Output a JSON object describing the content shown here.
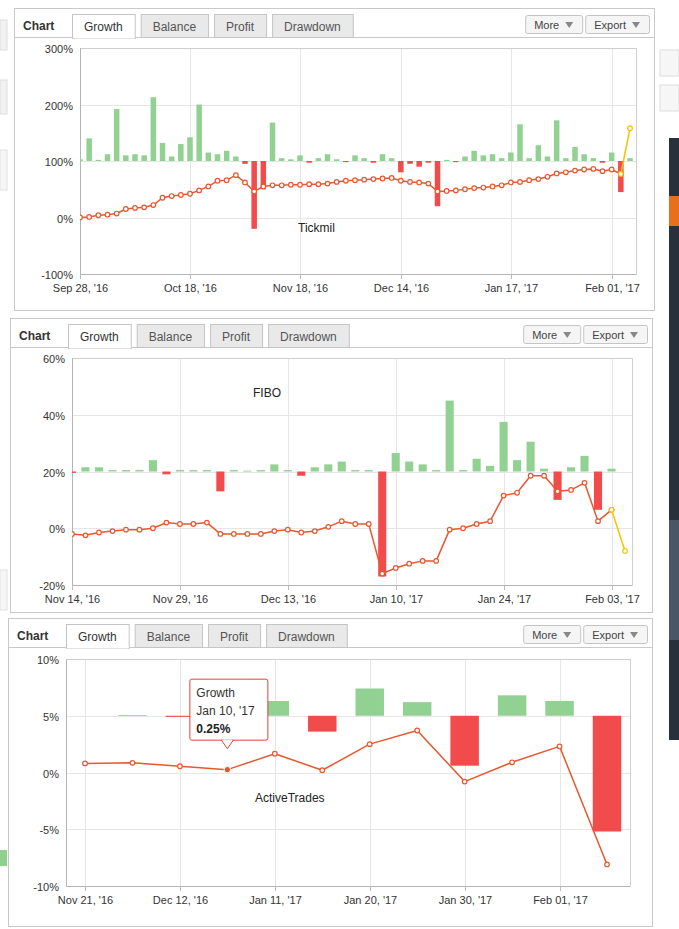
{
  "ui": {
    "header": "Chart",
    "tabs": [
      "Growth",
      "Balance",
      "Profit",
      "Drawdown"
    ],
    "buttons": [
      "More",
      "Export"
    ]
  },
  "chart_data": [
    {
      "type": "bar",
      "annotation": "Tickmil",
      "categories": [
        "Sep 28, '16",
        null,
        null,
        null,
        null,
        null,
        null,
        null,
        null,
        null,
        null,
        null,
        "Oct 18, '16",
        null,
        null,
        null,
        null,
        null,
        null,
        null,
        null,
        null,
        null,
        null,
        "Nov 18, '16",
        null,
        null,
        null,
        null,
        null,
        null,
        null,
        null,
        null,
        null,
        "Dec 14, '16",
        null,
        null,
        null,
        null,
        null,
        null,
        null,
        null,
        null,
        null,
        null,
        "Jan 17, '17",
        null,
        null,
        null,
        null,
        null,
        null,
        null,
        null,
        null,
        null,
        "Feb 01, '17",
        null,
        null
      ],
      "ylim": [
        -100,
        300
      ],
      "yticks": [
        {
          "value": -100,
          "label": "-100%"
        },
        {
          "value": 0,
          "label": "0%"
        },
        {
          "value": 100,
          "label": "100%"
        },
        {
          "value": 200,
          "label": "200%"
        },
        {
          "value": 300,
          "label": "300%"
        }
      ],
      "y2lim": [
        -200,
        200
      ],
      "grid": true,
      "series": [
        {
          "type": "bar",
          "axis": "y2",
          "values": [
            3,
            40,
            2,
            12,
            92,
            10,
            12,
            10,
            113,
            32,
            8,
            30,
            42,
            100,
            15,
            12,
            18,
            8,
            -5,
            -120,
            -50,
            68,
            5,
            3,
            10,
            -3,
            5,
            12,
            3,
            -2,
            10,
            5,
            -3,
            12,
            5,
            -20,
            -5,
            -10,
            -3,
            -80,
            2,
            -2,
            8,
            18,
            10,
            12,
            5,
            15,
            65,
            5,
            28,
            8,
            72,
            5,
            25,
            12,
            5,
            -3,
            15,
            -55,
            5
          ],
          "colors": [
            "#91d191",
            "#91d191",
            "#91d191",
            "#91d191",
            "#91d191",
            "#91d191",
            "#91d191",
            "#91d191",
            "#91d191",
            "#91d191",
            "#91d191",
            "#91d191",
            "#91d191",
            "#91d191",
            "#91d191",
            "#91d191",
            "#91d191",
            "#91d191",
            "#f24b4b",
            "#f24b4b",
            "#f24b4b",
            "#91d191",
            "#91d191",
            "#91d191",
            "#91d191",
            "#f24b4b",
            "#91d191",
            "#91d191",
            "#91d191",
            "#f24b4b",
            "#91d191",
            "#91d191",
            "#f24b4b",
            "#91d191",
            "#91d191",
            "#f24b4b",
            "#f24b4b",
            "#f24b4b",
            "#f24b4b",
            "#f24b4b",
            "#91d191",
            "#f24b4b",
            "#91d191",
            "#91d191",
            "#91d191",
            "#91d191",
            "#91d191",
            "#91d191",
            "#91d191",
            "#91d191",
            "#91d191",
            "#91d191",
            "#91d191",
            "#91d191",
            "#91d191",
            "#91d191",
            "#91d191",
            "#f24b4b",
            "#91d191",
            "#f24b4b",
            "#91d191"
          ]
        },
        {
          "type": "line",
          "color": "#e9572f",
          "marker": "circle",
          "values": [
            0,
            1,
            4,
            5,
            7,
            15,
            17,
            18,
            22,
            35,
            38,
            40,
            42,
            48,
            55,
            65,
            66,
            75,
            62,
            46,
            55,
            57,
            57,
            58,
            58,
            59,
            59,
            60,
            63,
            65,
            66,
            67,
            68,
            69,
            70,
            65,
            63,
            62,
            60,
            46,
            47,
            48,
            50,
            52,
            53,
            55,
            57,
            62,
            63,
            66,
            68,
            72,
            78,
            80,
            83,
            85,
            86,
            82,
            85,
            77,
            null
          ]
        },
        {
          "type": "line",
          "color": "#f5c400",
          "marker": "circle",
          "values": [
            null,
            null,
            null,
            null,
            null,
            null,
            null,
            null,
            null,
            null,
            null,
            null,
            null,
            null,
            null,
            null,
            null,
            null,
            null,
            null,
            null,
            null,
            null,
            null,
            null,
            null,
            null,
            null,
            null,
            null,
            null,
            null,
            null,
            null,
            null,
            null,
            null,
            null,
            null,
            null,
            null,
            null,
            null,
            null,
            null,
            null,
            null,
            null,
            null,
            null,
            null,
            null,
            null,
            null,
            null,
            null,
            null,
            null,
            null,
            77,
            158
          ]
        }
      ]
    },
    {
      "type": "bar",
      "annotation": "FIBO",
      "categories": [
        "Nov 14, '16",
        null,
        null,
        null,
        null,
        null,
        null,
        null,
        "Nov 29, '16",
        null,
        null,
        null,
        null,
        null,
        null,
        null,
        "Dec 13, '16",
        null,
        null,
        null,
        null,
        null,
        null,
        null,
        "Jan 10, '17",
        null,
        null,
        null,
        null,
        null,
        null,
        null,
        "Jan 24, '17",
        null,
        null,
        null,
        null,
        null,
        null,
        null,
        "Feb 03, '17",
        null
      ],
      "ylim": [
        -20,
        60
      ],
      "yticks": [
        {
          "value": -20,
          "label": "-20%"
        },
        {
          "value": 0,
          "label": "0%"
        },
        {
          "value": 20,
          "label": "20%"
        },
        {
          "value": 40,
          "label": "40%"
        },
        {
          "value": 60,
          "label": "60%"
        }
      ],
      "y2lim": [
        -40,
        40
      ],
      "grid": true,
      "series": [
        {
          "type": "bar",
          "axis": "y2",
          "values": [
            -0.5,
            1.5,
            1.5,
            0.5,
            0.5,
            0.5,
            4,
            -1,
            0.5,
            0.5,
            0.5,
            -7,
            0.5,
            0.3,
            0.5,
            2.5,
            0.5,
            -1.5,
            1.5,
            2.5,
            3.5,
            0.5,
            0.5,
            -37,
            6.5,
            3.5,
            2.5,
            0.5,
            25,
            0.5,
            4.5,
            2,
            17.5,
            4,
            10.5,
            1,
            -10,
            1.5,
            5.5,
            -13.5,
            1,
            null
          ],
          "colors": [
            "#f24b4b",
            "#91d191",
            "#91d191",
            "#91d191",
            "#91d191",
            "#91d191",
            "#91d191",
            "#f24b4b",
            "#91d191",
            "#91d191",
            "#91d191",
            "#f24b4b",
            "#91d191",
            "#91d191",
            "#91d191",
            "#91d191",
            "#91d191",
            "#f24b4b",
            "#91d191",
            "#91d191",
            "#91d191",
            "#91d191",
            "#91d191",
            "#f24b4b",
            "#91d191",
            "#91d191",
            "#91d191",
            "#91d191",
            "#91d191",
            "#91d191",
            "#91d191",
            "#91d191",
            "#91d191",
            "#91d191",
            "#91d191",
            "#91d191",
            "#f24b4b",
            "#91d191",
            "#91d191",
            "#f24b4b",
            "#91d191",
            null
          ]
        },
        {
          "type": "line",
          "color": "#e9572f",
          "marker": "circle",
          "values": [
            -2,
            -2.5,
            -1.5,
            -1,
            -0.5,
            -0.5,
            0,
            2,
            1.5,
            1.5,
            2,
            -2,
            -2,
            -2,
            -2,
            -1,
            -0.5,
            -1.5,
            -1,
            0.5,
            2.5,
            1.5,
            1.5,
            -16,
            -14,
            -12.5,
            -11.5,
            -11.5,
            -0.5,
            0,
            1.5,
            2.5,
            11.5,
            12.5,
            18.5,
            18.5,
            13,
            13.5,
            16,
            2.5,
            6.5,
            null
          ]
        },
        {
          "type": "line",
          "color": "#f5c400",
          "marker": "circle",
          "values": [
            null,
            null,
            null,
            null,
            null,
            null,
            null,
            null,
            null,
            null,
            null,
            null,
            null,
            null,
            null,
            null,
            null,
            null,
            null,
            null,
            null,
            null,
            null,
            null,
            null,
            null,
            null,
            null,
            null,
            null,
            null,
            null,
            null,
            null,
            null,
            null,
            null,
            null,
            null,
            null,
            6.5,
            -8
          ]
        }
      ]
    },
    {
      "type": "bar",
      "annotation": "ActiveTrades",
      "categories": [
        "Nov 21, '16",
        null,
        "Dec 12, '16",
        null,
        "Jan 11, '17",
        null,
        "Jan 20, '17",
        null,
        "Jan 30, '17",
        null,
        "Feb 01, '17",
        null
      ],
      "ylim": [
        -10,
        10
      ],
      "yticks": [
        {
          "value": -10,
          "label": "-10%"
        },
        {
          "value": -5,
          "label": "-5%"
        },
        {
          "value": 0,
          "label": "0%"
        },
        {
          "value": 5,
          "label": "5%"
        },
        {
          "value": 10,
          "label": "10%"
        }
      ],
      "y2lim": [
        -15,
        5
      ],
      "grid": true,
      "tooltip": {
        "title": "Growth",
        "x": "Jan 10, '17",
        "value": 0.25,
        "label": "0.25%"
      },
      "series": [
        {
          "type": "bar",
          "axis": "y2",
          "values": [
            null,
            0.05,
            -0.1,
            null,
            1.3,
            -1.4,
            2.4,
            1.2,
            -4.4,
            1.8,
            1.3,
            -10.2
          ],
          "colors": [
            null,
            "#91d191",
            "#f24b4b",
            null,
            "#91d191",
            "#f24b4b",
            "#91d191",
            "#91d191",
            "#f24b4b",
            "#91d191",
            "#91d191",
            "#f24b4b"
          ]
        },
        {
          "type": "line",
          "color": "#e9572f",
          "marker": "circle",
          "values": [
            0.8,
            0.85,
            0.55,
            0.25,
            1.65,
            0.2,
            2.5,
            3.7,
            -0.8,
            0.9,
            2.3,
            -8.1
          ]
        }
      ]
    }
  ]
}
